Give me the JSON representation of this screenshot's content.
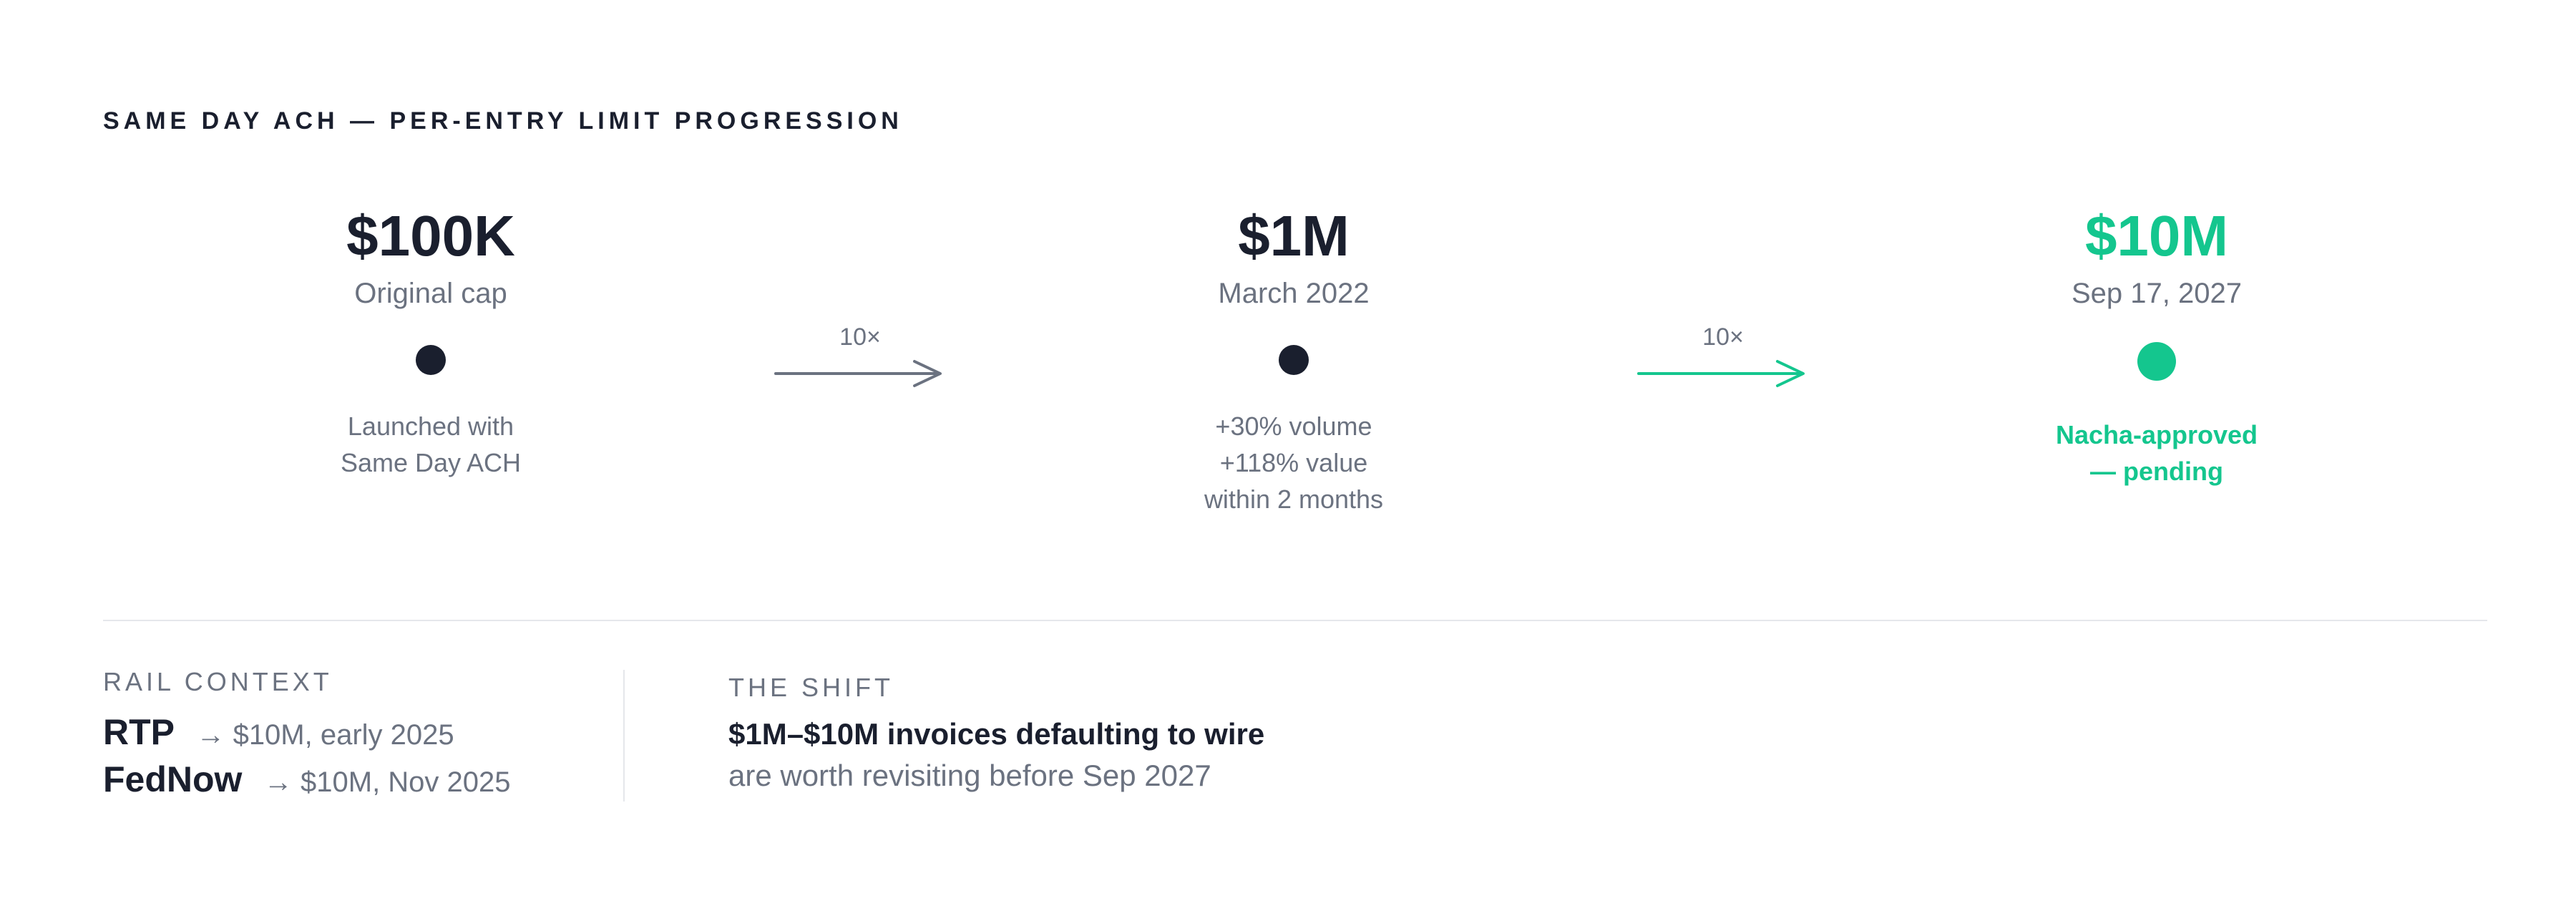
{
  "title": "SAME DAY ACH — PER-ENTRY LIMIT PROGRESSION",
  "colors": {
    "dark": "#1a1f2e",
    "muted": "#6b7280",
    "accent": "#14c68e",
    "divider": "#e5e7eb"
  },
  "stages": [
    {
      "amount": "$100K",
      "sub": "Original cap",
      "note_lines": [
        "Launched with",
        "Same Day ACH"
      ]
    },
    {
      "amount": "$1M",
      "sub": "March 2022",
      "note_lines": [
        "+30% volume",
        "+118% value",
        "within 2 months"
      ]
    },
    {
      "amount": "$10M",
      "sub": "Sep 17, 2027",
      "note_lines": [
        "Nacha-approved",
        "— pending"
      ]
    }
  ],
  "connectors": [
    {
      "label": "10×",
      "color": "#6b7280"
    },
    {
      "label": "10×",
      "color": "#14c68e"
    }
  ],
  "rail_context": {
    "heading": "RAIL CONTEXT",
    "rails": [
      {
        "name": "RTP",
        "detail": "→ $10M, early 2025"
      },
      {
        "name": "FedNow",
        "detail": "→ $10M, Nov 2025"
      }
    ]
  },
  "shift": {
    "heading": "THE SHIFT",
    "headline": "$1M–$10M invoices defaulting to wire",
    "body": "are worth revisiting before Sep 2027"
  }
}
